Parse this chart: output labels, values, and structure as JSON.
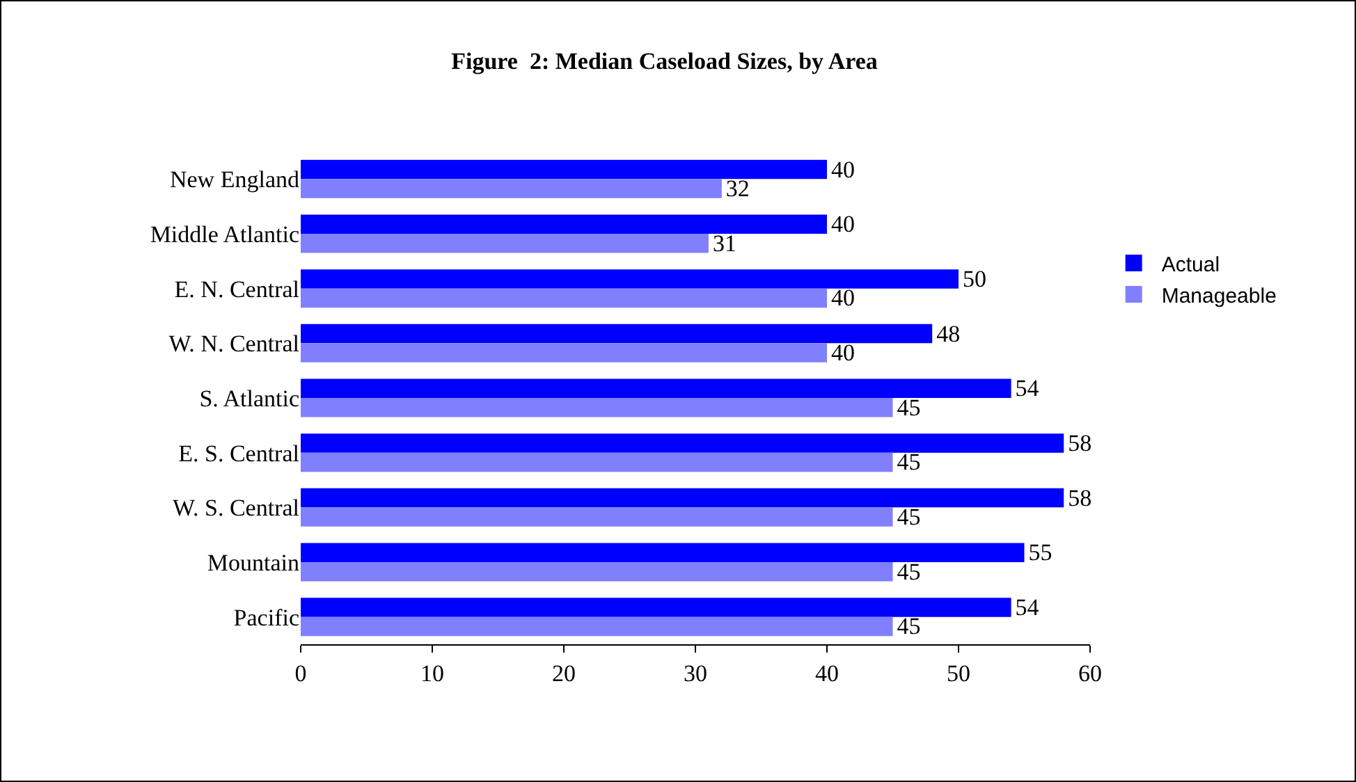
{
  "chart_data": {
    "type": "bar",
    "orientation": "horizontal",
    "title": "Figure  2: Median Caseload Sizes, by Area",
    "categories": [
      "New England",
      "Middle Atlantic",
      "E. N. Central",
      "W. N. Central",
      "S. Atlantic",
      "E. S. Central",
      "W. S. Central",
      "Mountain",
      "Pacific"
    ],
    "series": [
      {
        "name": "Actual",
        "color": "#0000ff",
        "values": [
          40,
          40,
          50,
          48,
          54,
          58,
          58,
          55,
          54
        ]
      },
      {
        "name": "Manageable",
        "color": "#8080ff",
        "values": [
          32,
          31,
          40,
          40,
          45,
          45,
          45,
          45,
          45
        ]
      }
    ],
    "xlim": [
      0,
      60
    ],
    "xticks": [
      0,
      10,
      20,
      30,
      40,
      50,
      60
    ],
    "data_labels": true,
    "grid": false,
    "legend": "right"
  }
}
